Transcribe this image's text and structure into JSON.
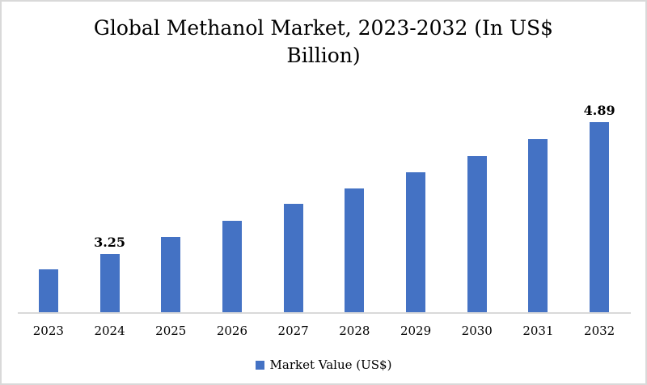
{
  "chart_data": {
    "type": "bar",
    "title": "Global Methanol Market, 2023-2032 (In US$ Billion)",
    "categories": [
      "2023",
      "2024",
      "2025",
      "2026",
      "2027",
      "2028",
      "2029",
      "2030",
      "2031",
      "2032"
    ],
    "series": [
      {
        "name": "Market Value (US$)",
        "color": "#4472C4",
        "values": [
          3.06,
          3.25,
          3.46,
          3.66,
          3.87,
          4.07,
          4.27,
          4.47,
          4.68,
          4.89
        ]
      }
    ],
    "data_labels": [
      "",
      "3.25",
      "",
      "",
      "",
      "",
      "",
      "",
      "",
      "4.89"
    ],
    "xlabel": "",
    "ylabel": "",
    "ylim": [
      2.53,
      5.37
    ],
    "y_axis_visible": false,
    "gridlines": false,
    "legend": {
      "label": "Market Value (US$)",
      "position": "bottom"
    }
  },
  "colors": {
    "bar": "#4472C4",
    "axis_line": "#D9D9D9",
    "frame_border": "#D9D9D9",
    "text": "#000000"
  }
}
